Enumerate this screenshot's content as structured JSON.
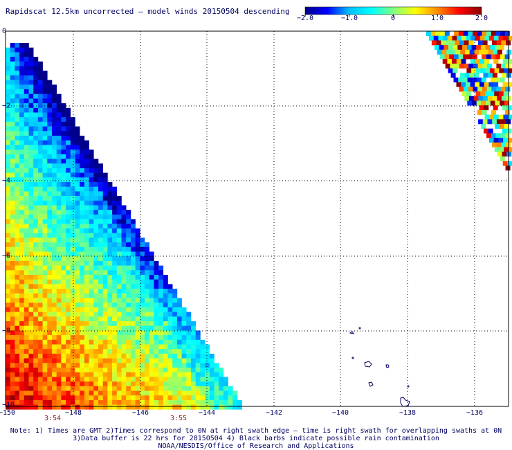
{
  "title": "Rapidscat 12.5km uncorrected — model winds 20150504 descending",
  "colorbar": {
    "labels": [
      "−2.0",
      "−1.0",
      "0",
      "1.0",
      "2.0"
    ],
    "stops": [
      "#00008b",
      "#0000ff",
      "#00bfff",
      "#00ffff",
      "#7fff7f",
      "#ffff00",
      "#ff8c00",
      "#ff0000",
      "#8b0000"
    ]
  },
  "x_ticks": [
    "−150",
    "−148",
    "−146",
    "−144",
    "−142",
    "−140",
    "−138",
    "−136"
  ],
  "y_ticks": [
    "0",
    "−2",
    "−4",
    "−6",
    "−8",
    "−10"
  ],
  "times": [
    "3:54",
    "3:55"
  ],
  "notes": [
    "Note: 1) Times are GMT 2)Times correspond to 0N at right swath edge — time is right swath for overlapping swaths at 0N",
    "3)Data buffer is 22 hrs for 20150504 4) Black barbs indicate possible rain contamination",
    "NOAA/NESDIS/Office of Research and Applications"
  ],
  "map": {
    "lon_range": [
      -150,
      -135
    ],
    "lat_range": [
      -10,
      0
    ],
    "variable": "wind speed difference (scatterometer − model)",
    "value_range": [
      -2.0,
      2.0
    ],
    "grid": "dotted",
    "main_swath": "values mostly 0 to 2 in south-west, near 0 to −1 toward north and east edges",
    "east_swath": "narrow swath in north-east corner with mixed −2 to 2 values"
  }
}
